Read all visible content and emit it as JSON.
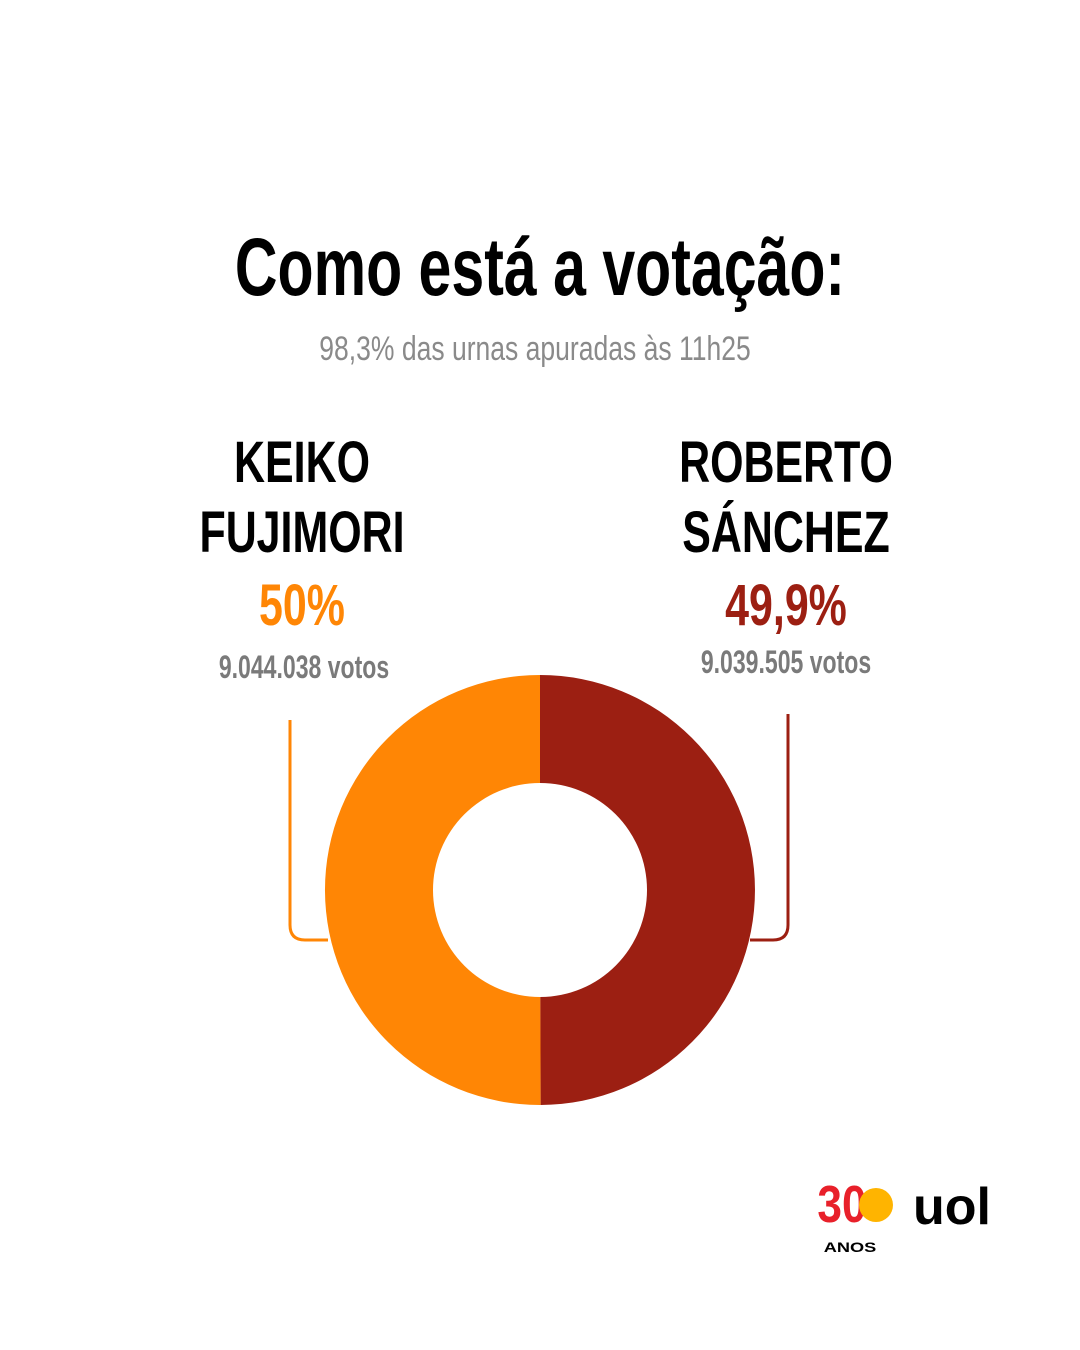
{
  "chart_data": {
    "type": "donut",
    "title": "Como está a votação:",
    "subtitle": "98,3% das urnas apuradas às 11h25",
    "series": [
      {
        "name": "KEIKO FUJIMORI",
        "color": "#ff8605",
        "values": [
          50
        ],
        "value_labels": [
          "50%"
        ],
        "votes_label": "9.044.038 votos"
      },
      {
        "name": "ROBERTO SÁNCHEZ",
        "color": "#9c1f12",
        "values": [
          49.9
        ],
        "value_labels": [
          "49,9%"
        ],
        "votes_label": "9.039.505 votos"
      }
    ]
  },
  "logo": {
    "number": "30",
    "caption": "ANOS",
    "brand": "uol"
  }
}
